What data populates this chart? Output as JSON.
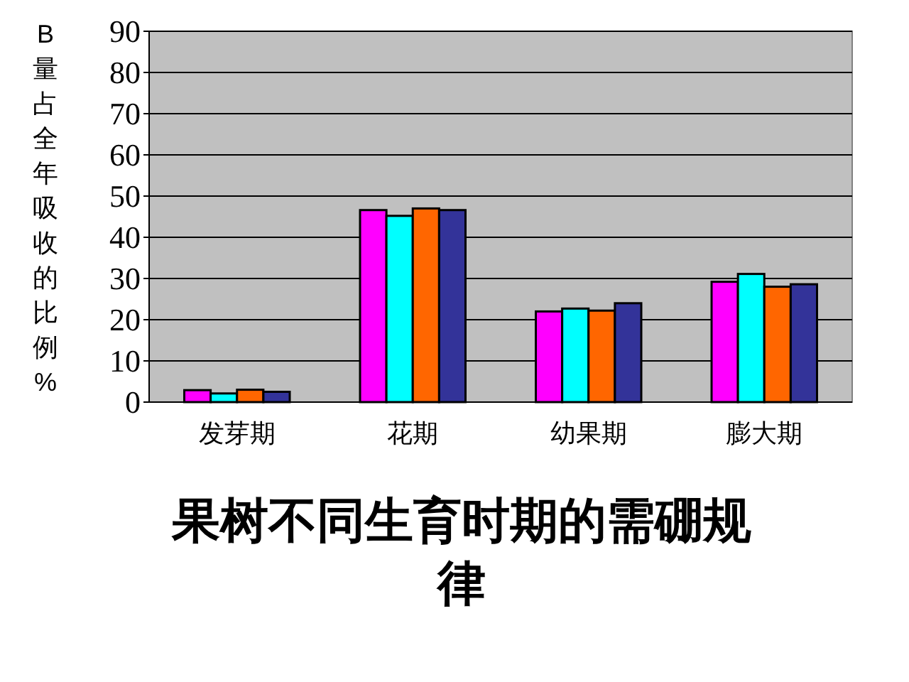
{
  "chart_data": {
    "type": "bar",
    "title": "果树不同生育时期的需硼规律",
    "ylabel": "B量占全年吸收的比例%",
    "categories": [
      "发芽期",
      "花期",
      "幼果期",
      "膨大期"
    ],
    "series": [
      {
        "color": "#ff00ff",
        "values": [
          2.9,
          46.6,
          22,
          29.2
        ]
      },
      {
        "color": "#00ffff",
        "values": [
          2.1,
          45.2,
          22.7,
          31.1
        ]
      },
      {
        "color": "#ff6600",
        "values": [
          3,
          47,
          22.2,
          28
        ]
      },
      {
        "color": "#333399",
        "values": [
          2.5,
          46.6,
          24,
          28.6
        ]
      }
    ],
    "ylim": [
      0,
      90
    ],
    "yticks": [
      0,
      10,
      20,
      30,
      40,
      50,
      60,
      70,
      80,
      90
    ],
    "grid": "y"
  }
}
